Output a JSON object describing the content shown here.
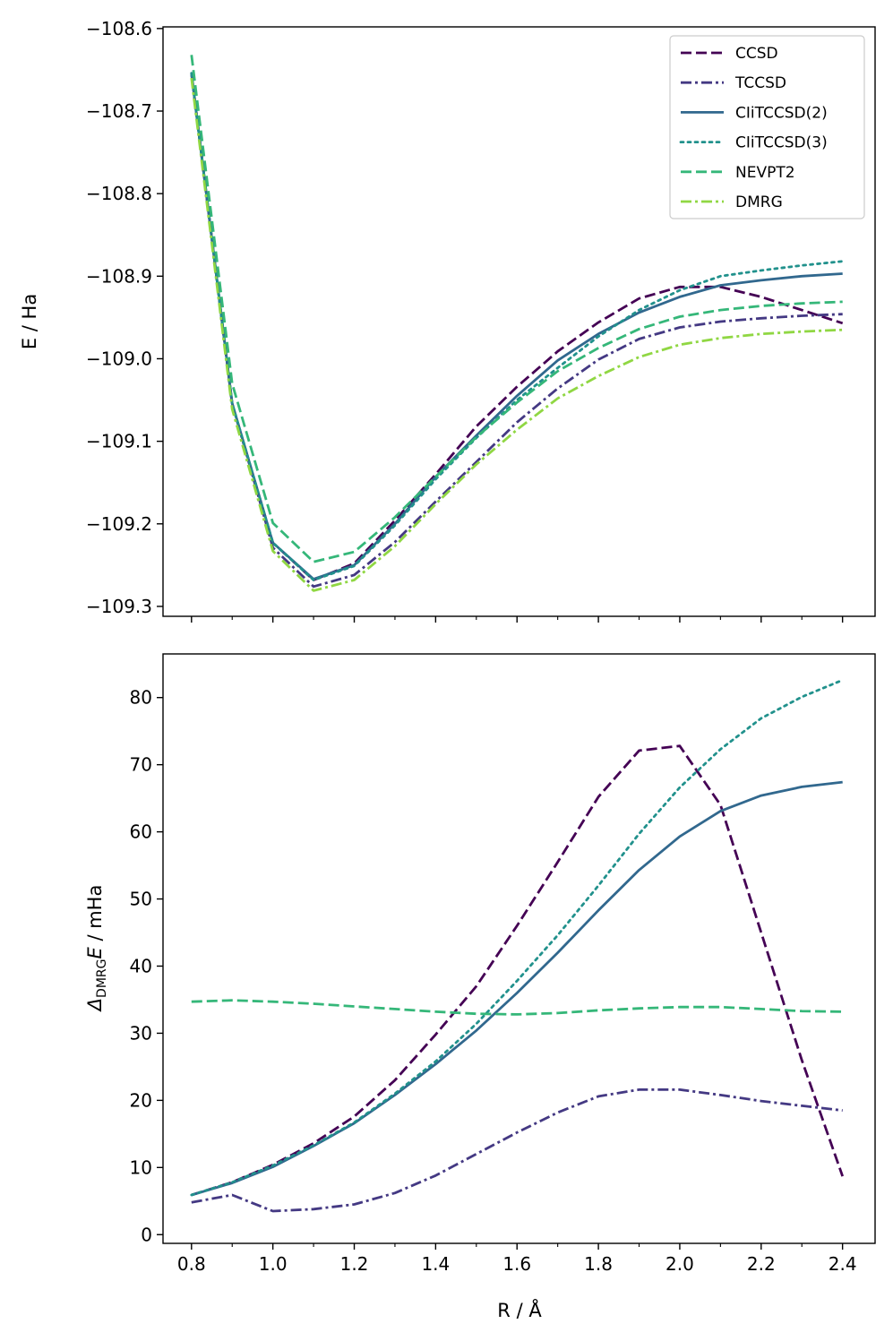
{
  "colors": {
    "CCSD": "#440154",
    "TCCSD": "#443983",
    "CIiTCCSD(2)": "#31688e",
    "CIiTCCSD(3)": "#21918c",
    "NEVPT2": "#35b779",
    "DMRG": "#90d743"
  },
  "chart_data": [
    {
      "type": "line",
      "panel": "top",
      "xlabel": "",
      "ylabel": "E / Ha",
      "xlim": [
        0.73,
        2.48
      ],
      "ylim": [
        -109.312,
        -108.598
      ],
      "x_ticks": [
        0.8,
        1.0,
        1.2,
        1.4,
        1.6,
        1.8,
        2.0,
        2.2,
        2.4
      ],
      "x_minor_ticks": [
        0.9,
        1.1,
        1.3,
        1.5,
        1.7,
        1.9,
        2.1,
        2.3
      ],
      "y_ticks": [
        -109.3,
        -109.2,
        -109.1,
        -109.0,
        -108.9,
        -108.8,
        -108.7,
        -108.6
      ],
      "y_tick_labels": [
        "−109.3",
        "−109.2",
        "−109.1",
        "−109.0",
        "−108.9",
        "−108.8",
        "−108.7",
        "−108.6"
      ],
      "legend": "top-right",
      "x": [
        0.8,
        0.9,
        1.0,
        1.1,
        1.2,
        1.3,
        1.4,
        1.5,
        1.6,
        1.7,
        1.8,
        1.9,
        2.0,
        2.1,
        2.2,
        2.3,
        2.4
      ],
      "series": [
        {
          "name": "CCSD",
          "style": "dashed",
          "values": [
            -108.654,
            -109.055,
            -109.223,
            -109.268,
            -109.248,
            -109.196,
            -109.14,
            -109.082,
            -109.034,
            -108.991,
            -108.956,
            -108.927,
            -108.913,
            -108.913,
            -108.925,
            -108.941,
            -108.957
          ]
        },
        {
          "name": "TCCSD",
          "style": "dashdot",
          "values": [
            -108.655,
            -109.054,
            -109.229,
            -109.276,
            -109.262,
            -109.222,
            -109.173,
            -109.125,
            -109.077,
            -109.036,
            -109.001,
            -108.976,
            -108.962,
            -108.955,
            -108.951,
            -108.948,
            -108.946
          ]
        },
        {
          "name": "CIiTCCSD(2)",
          "style": "solid",
          "values": [
            -108.654,
            -109.054,
            -109.223,
            -109.267,
            -109.25,
            -109.2,
            -109.143,
            -109.093,
            -109.045,
            -109.002,
            -108.97,
            -108.944,
            -108.925,
            -108.911,
            -108.905,
            -108.9,
            -108.897
          ]
        },
        {
          "name": "CIiTCCSD(3)",
          "style": "dotted",
          "values": [
            -108.654,
            -109.054,
            -109.223,
            -109.268,
            -109.251,
            -109.202,
            -109.146,
            -109.096,
            -109.05,
            -109.011,
            -108.973,
            -108.941,
            -108.917,
            -108.9,
            -108.893,
            -108.887,
            -108.882
          ]
        },
        {
          "name": "NEVPT2",
          "style": "dashed",
          "values": [
            -108.632,
            -109.03,
            -109.199,
            -109.246,
            -109.234,
            -109.192,
            -109.143,
            -109.095,
            -109.053,
            -109.015,
            -108.987,
            -108.964,
            -108.949,
            -108.941,
            -108.936,
            -108.933,
            -108.931
          ]
        },
        {
          "name": "DMRG",
          "style": "dashdot",
          "values": [
            -108.66,
            -109.061,
            -109.233,
            -109.281,
            -109.268,
            -109.227,
            -109.176,
            -109.128,
            -109.086,
            -109.048,
            -109.021,
            -108.998,
            -108.983,
            -108.975,
            -108.97,
            -108.967,
            -108.965
          ]
        }
      ]
    },
    {
      "type": "line",
      "panel": "bottom",
      "xlabel": "R / Å",
      "ylabel_prefix": "Δ",
      "ylabel_subscript": "DMRG",
      "ylabel_main": "E",
      "ylabel_unit": " / mHa",
      "xlim": [
        0.73,
        2.48
      ],
      "ylim": [
        -1.3,
        86.5
      ],
      "x_ticks": [
        0.8,
        1.0,
        1.2,
        1.4,
        1.6,
        1.8,
        2.0,
        2.2,
        2.4
      ],
      "x_tick_labels": [
        "0.8",
        "1.0",
        "1.2",
        "1.4",
        "1.6",
        "1.8",
        "2.0",
        "2.2",
        "2.4"
      ],
      "x_minor_ticks": [
        0.9,
        1.1,
        1.3,
        1.5,
        1.7,
        1.9,
        2.1,
        2.3
      ],
      "y_ticks": [
        0,
        10,
        20,
        30,
        40,
        50,
        60,
        70,
        80
      ],
      "y_tick_labels": [
        "0",
        "10",
        "20",
        "30",
        "40",
        "50",
        "60",
        "70",
        "80"
      ],
      "x": [
        0.8,
        0.9,
        1.0,
        1.1,
        1.2,
        1.3,
        1.4,
        1.5,
        1.6,
        1.7,
        1.8,
        1.9,
        2.0,
        2.1,
        2.2,
        2.3,
        2.4
      ],
      "series": [
        {
          "name": "CCSD",
          "style": "dashed",
          "values": [
            5.9,
            7.8,
            10.4,
            13.6,
            17.6,
            23.0,
            29.8,
            37.0,
            46.0,
            55.5,
            65.2,
            72.1,
            72.8,
            64.0,
            45.0,
            26.0,
            8.7
          ]
        },
        {
          "name": "TCCSD",
          "style": "dashdot",
          "values": [
            4.8,
            5.9,
            3.5,
            3.8,
            4.5,
            6.2,
            8.8,
            12.0,
            15.2,
            18.2,
            20.6,
            21.6,
            21.6,
            20.8,
            19.9,
            19.2,
            18.5
          ]
        },
        {
          "name": "CIiTCCSD(2)",
          "style": "solid",
          "values": [
            5.9,
            7.7,
            10.1,
            13.2,
            16.6,
            20.8,
            25.4,
            30.4,
            36.0,
            42.0,
            48.3,
            54.3,
            59.3,
            63.1,
            65.4,
            66.7,
            67.4
          ]
        },
        {
          "name": "CIiTCCSD(3)",
          "style": "dotted",
          "values": [
            5.9,
            7.8,
            10.3,
            13.3,
            16.7,
            21.0,
            25.8,
            31.4,
            37.8,
            44.6,
            52.0,
            59.7,
            66.6,
            72.3,
            76.9,
            80.1,
            82.6
          ]
        },
        {
          "name": "NEVPT2",
          "style": "dashed",
          "values": [
            34.7,
            34.9,
            34.7,
            34.4,
            34.0,
            33.6,
            33.2,
            32.9,
            32.8,
            33.0,
            33.4,
            33.7,
            33.9,
            33.9,
            33.6,
            33.3,
            33.2
          ]
        }
      ]
    }
  ]
}
